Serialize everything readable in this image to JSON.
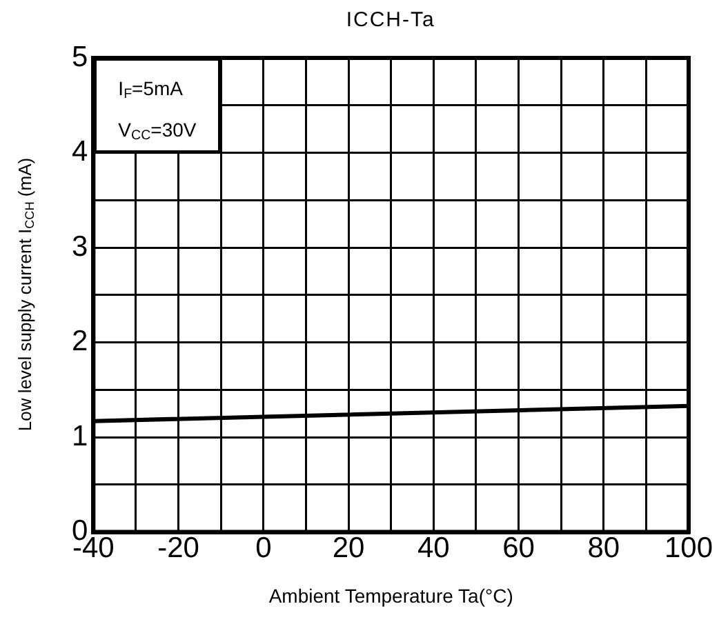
{
  "chart_data": {
    "type": "line",
    "title": "ICCH-Ta",
    "xlabel": "Ambient Temperature Ta(°C)",
    "ylabel": "Low level supply current   I$_{CCH}$   (mA)",
    "x": [
      -40,
      100
    ],
    "series": [
      {
        "color": "#000000",
        "values": [
          1.17,
          1.33
        ]
      }
    ],
    "xlim": [
      -40,
      100
    ],
    "xticks": [
      -40,
      {
        "value": -30,
        "label": null
      },
      -20,
      {
        "value": -10,
        "label": null
      },
      0,
      {
        "value": 10,
        "label": null
      },
      20,
      {
        "value": 30,
        "label": null
      },
      40,
      {
        "value": 50,
        "label": null
      },
      60,
      {
        "value": 70,
        "label": null
      },
      80,
      {
        "value": 90,
        "label": null
      },
      100
    ],
    "ylim": [
      0,
      5
    ],
    "yticks": [
      0,
      {
        "value": 0.5,
        "label": null
      },
      1,
      {
        "value": 1.5,
        "label": null
      },
      2,
      {
        "value": 2.5,
        "label": null
      },
      3,
      {
        "value": 3.5,
        "label": null
      },
      4,
      {
        "value": 4.5,
        "label": null
      },
      5
    ],
    "grid": true,
    "legend": false,
    "annotations": [
      "I$_{F}$=5mA",
      "V$_{CC}$=30V"
    ]
  }
}
